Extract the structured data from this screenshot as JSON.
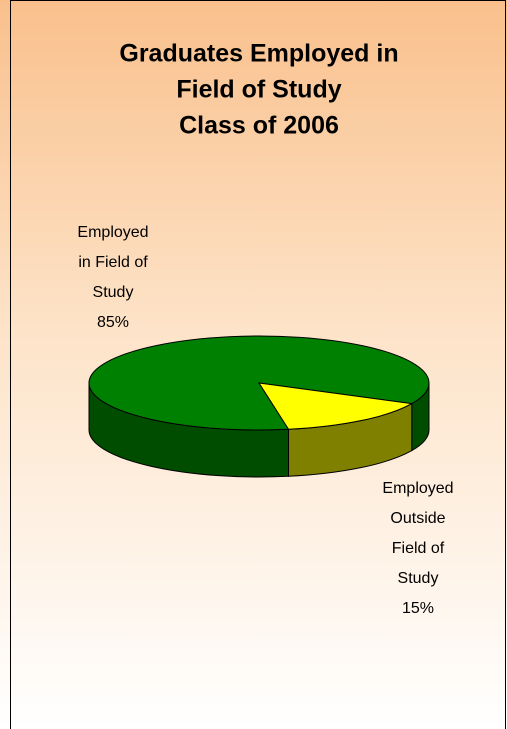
{
  "chart_data": {
    "type": "pie",
    "title": [
      "Graduates Employed in",
      "Field of Study",
      "Class of 2006"
    ],
    "categories": [
      "Employed in Field of Study",
      "Employed Outside Field of Study"
    ],
    "values": [
      85,
      15
    ],
    "value_labels": [
      "85%",
      "15%"
    ],
    "colors": [
      "#008000",
      "#ffff00"
    ],
    "side_colors": [
      "#004d00",
      "#808000"
    ]
  }
}
